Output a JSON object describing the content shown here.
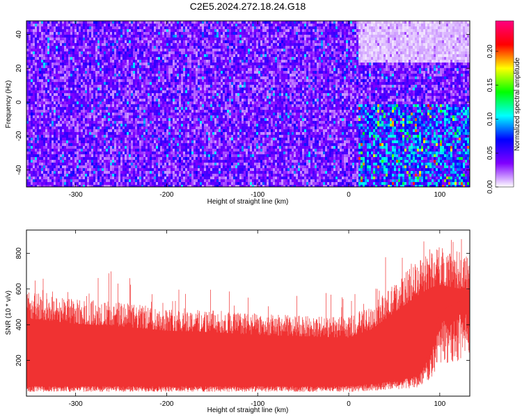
{
  "title": "C2E5.2024.272.18.24.G18",
  "chart_data": [
    {
      "type": "heatmap",
      "xlabel": "Height of straight line (km)",
      "ylabel": "Frequency (Hz)",
      "xlim": [
        -354,
        133
      ],
      "ylim": [
        -50,
        48
      ],
      "xticks": [
        -300,
        -200,
        -100,
        0,
        100
      ],
      "yticks": [
        -40,
        -20,
        0,
        20,
        40
      ],
      "colorbar": {
        "label": "Normalized spectral amplitude",
        "range": [
          0.0,
          0.245
        ],
        "ticks": [
          0.0,
          0.05,
          0.1,
          0.15,
          0.2
        ],
        "tick_labels": [
          "0.00",
          "0.05",
          "0.10",
          "0.15",
          "0.20"
        ],
        "colors": [
          "#ffffff",
          "#8000ff",
          "#0000ff",
          "#00ffff",
          "#00ff00",
          "#ffff00",
          "#ff0000",
          "#ff0080"
        ]
      },
      "regions": [
        {
          "x_range": [
            -354,
            10
          ],
          "y_range": [
            -50,
            48
          ],
          "mean_amplitude": 0.04
        },
        {
          "x_range": [
            10,
            133
          ],
          "y_range": [
            -50,
            0
          ],
          "mean_amplitude": 0.08
        },
        {
          "x_range": [
            10,
            133
          ],
          "y_range": [
            25,
            48
          ],
          "mean_amplitude": 0.01
        }
      ]
    },
    {
      "type": "area",
      "xlabel": "Height of straight line (km)",
      "ylabel": "SNR (10 * v/v)",
      "xlim": [
        -354,
        133
      ],
      "ylim": [
        0,
        930
      ],
      "xticks": [
        -300,
        -200,
        -100,
        0,
        100
      ],
      "yticks": [
        200,
        400,
        600,
        800
      ],
      "color": "#f03232",
      "envelope": {
        "x": [
          -354,
          -300,
          -250,
          -200,
          -150,
          -100,
          -50,
          0,
          25,
          50,
          75,
          90,
          100,
          115,
          133
        ],
        "lower": [
          40,
          40,
          40,
          40,
          40,
          40,
          40,
          40,
          50,
          60,
          80,
          160,
          300,
          320,
          350
        ],
        "upper": [
          560,
          520,
          500,
          470,
          460,
          440,
          430,
          420,
          480,
          600,
          720,
          780,
          800,
          780,
          760
        ],
        "max_spike": [
          700,
          720,
          700,
          600,
          600,
          620,
          560,
          600,
          700,
          850,
          920,
          920,
          900,
          900,
          880
        ]
      }
    }
  ]
}
